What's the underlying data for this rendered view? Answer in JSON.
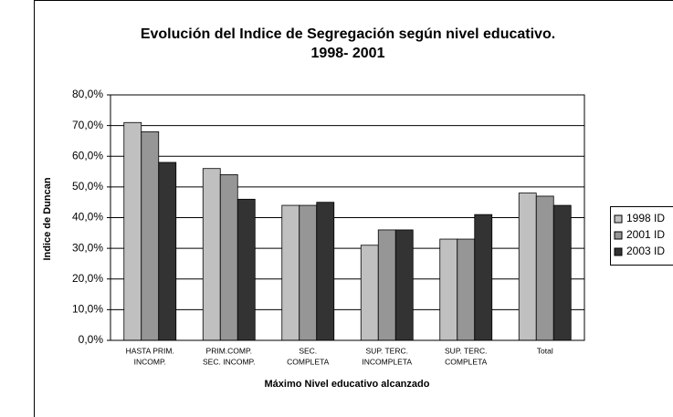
{
  "chart_data": {
    "type": "bar",
    "title": "Evolución del Indice de Segregación según nivel educativo.",
    "subtitle": "1998- 2001",
    "x_label": "Máximo Nivel educativo alcanzado",
    "y_label": "Indice de Duncan",
    "categories": [
      [
        "HASTA PRIM.",
        "INCOMP."
      ],
      [
        "PRIM.COMP.",
        "SEC. INCOMP."
      ],
      [
        "SEC.",
        "COMPLETA"
      ],
      [
        "SUP. TERC.",
        "INCOMPLETA"
      ],
      [
        "SUP. TERC.",
        "COMPLETA"
      ],
      [
        "Total"
      ]
    ],
    "series": [
      {
        "name": "1998 ID",
        "color": "#c0c0c0",
        "values": [
          71,
          56,
          44,
          31,
          33,
          48
        ]
      },
      {
        "name": "2001 ID",
        "color": "#969696",
        "values": [
          68,
          54,
          44,
          36,
          33,
          47
        ]
      },
      {
        "name": "2003 ID",
        "color": "#333333",
        "values": [
          58,
          46,
          45,
          36,
          41,
          44
        ]
      }
    ],
    "ylim": [
      0,
      80
    ],
    "yticks": [
      {
        "value": 0,
        "label": "0,0%"
      },
      {
        "value": 10,
        "label": "10,0%"
      },
      {
        "value": 20,
        "label": "20,0%"
      },
      {
        "value": 30,
        "label": "30,0%"
      },
      {
        "value": 40,
        "label": "40,0%"
      },
      {
        "value": 50,
        "label": "50,0%"
      },
      {
        "value": 60,
        "label": "60,0%"
      },
      {
        "value": 70,
        "label": "70,0%"
      },
      {
        "value": 80,
        "label": "80,0%"
      }
    ],
    "grid": true,
    "legend": "right"
  }
}
